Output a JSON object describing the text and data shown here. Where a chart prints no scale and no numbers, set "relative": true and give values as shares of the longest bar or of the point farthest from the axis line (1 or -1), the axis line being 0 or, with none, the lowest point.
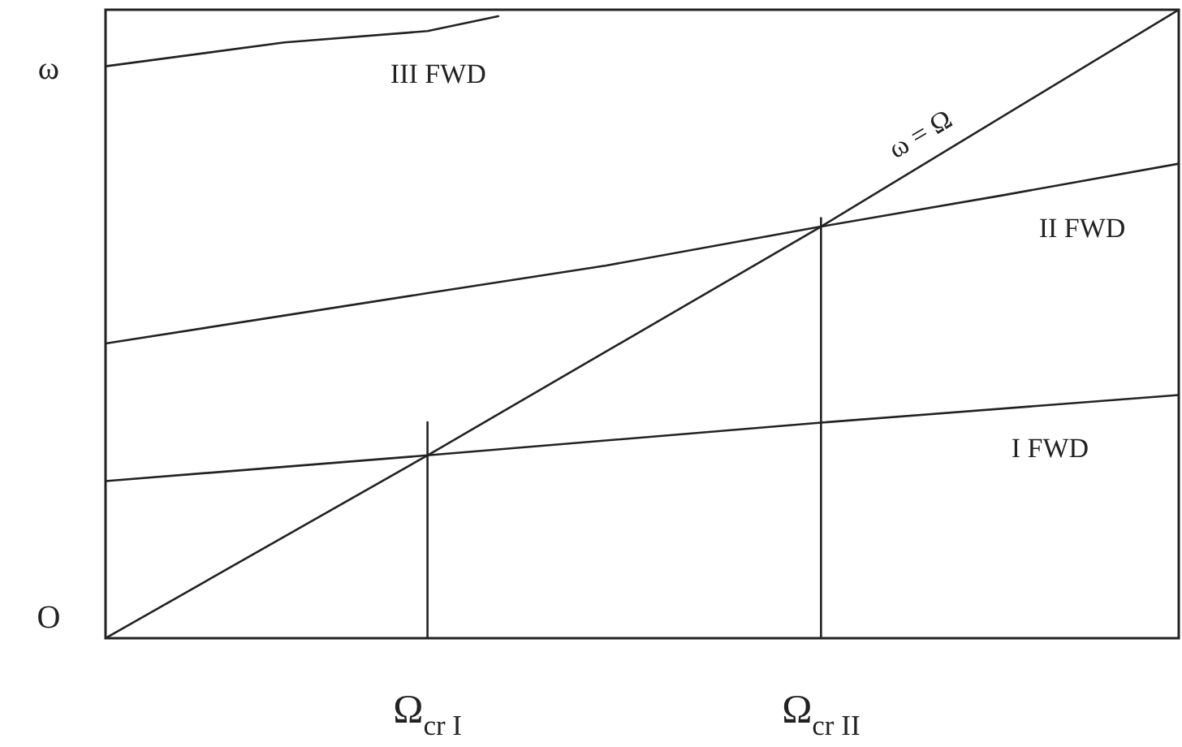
{
  "chart_data": {
    "type": "line",
    "relative": true,
    "ylabel": "ω",
    "annotations": [
      "O"
    ],
    "categories": [
      null,
      null,
      null,
      null,
      null,
      null,
      null,
      null,
      null,
      "Ω$_{cr I}$",
      null,
      null,
      null,
      null,
      null,
      null,
      null,
      null,
      null,
      null,
      "Ω$_{cr II}$",
      null,
      null,
      null,
      null,
      null,
      null,
      null,
      null,
      null,
      null
    ],
    "series": [
      {
        "name": "I FWD",
        "color": "#222222",
        "values": [
          0.25,
          null,
          null,
          null,
          null,
          null,
          null,
          null,
          null,
          0.291,
          null,
          null,
          null,
          null,
          null,
          null,
          null,
          null,
          null,
          null,
          0.343,
          null,
          null,
          null,
          null,
          null,
          null,
          null,
          null,
          null,
          0.387
        ]
      },
      {
        "name": "II FWD",
        "color": "#222222",
        "values": [
          0.469,
          null,
          null,
          null,
          null,
          null,
          null,
          null,
          null,
          0.549,
          null,
          null,
          null,
          null,
          0.593,
          null,
          null,
          null,
          null,
          null,
          0.655,
          null,
          null,
          null,
          null,
          0.704,
          null,
          null,
          null,
          null,
          0.755
        ]
      },
      {
        "name": "III FWD",
        "color": "#222222",
        "values": [
          0.91,
          null,
          null,
          null,
          null,
          0.948,
          null,
          null,
          null,
          0.966,
          null,
          0.99,
          null,
          null,
          null,
          null,
          null,
          null,
          null,
          null,
          null,
          null,
          null,
          null,
          null,
          null,
          null,
          null,
          null,
          null,
          null
        ]
      },
      {
        "name": "ω = Ω",
        "color": "#222222",
        "values": [
          0,
          null,
          null,
          null,
          null,
          null,
          null,
          null,
          null,
          0.291,
          null,
          null,
          null,
          null,
          null,
          null,
          null,
          null,
          null,
          null,
          0.655,
          null,
          null,
          null,
          null,
          null,
          null,
          null,
          null,
          null,
          1
        ]
      },
      {
        "type": "line",
        "color": "#222222",
        "x": [
          "Ω$_{cr I}$",
          "Ω$_{cr I}$"
        ],
        "values": [
          0,
          0.345
        ]
      },
      {
        "type": "line",
        "color": "#222222",
        "x": [
          "Ω$_{cr II}$",
          "Ω$_{cr II}$"
        ],
        "values": [
          0,
          0.67
        ]
      }
    ]
  }
}
